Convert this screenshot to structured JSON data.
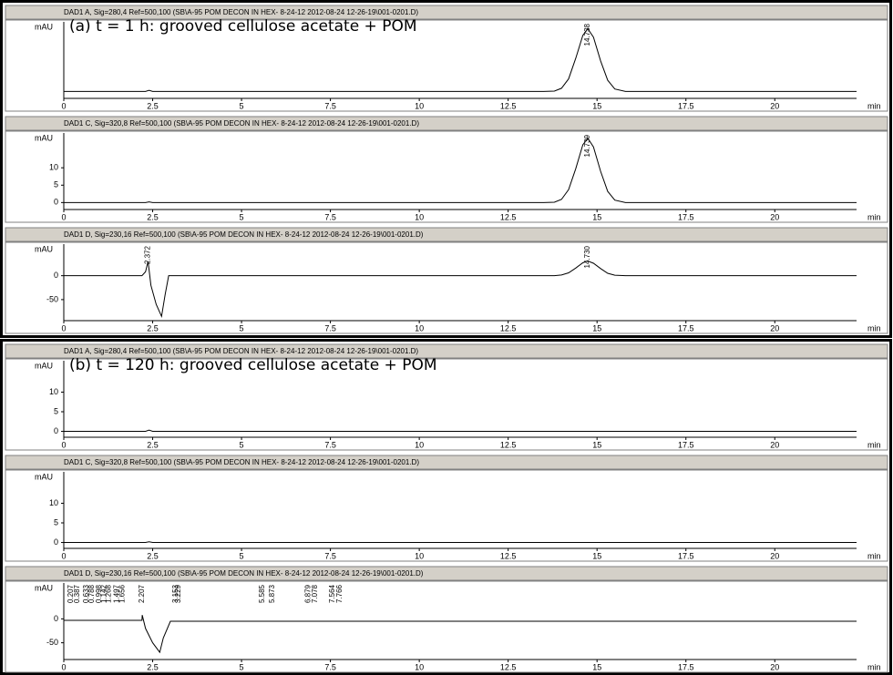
{
  "chart_data": [
    {
      "type": "line",
      "title": "DAD1 A, Sig=280,4 Ref=500,100 (SB\\A-95 POM DECON IN HEX- 8-24-12 2012-08-24 12-26-19\\001-0201.D)",
      "annotation": "(a) t = 1 h: grooved cellulose acetate + POM",
      "y_label": "mAU",
      "x_label": "min",
      "xlim": [
        0,
        22.3
      ],
      "xticks": [
        0,
        2.5,
        5,
        7.5,
        10,
        12.5,
        15,
        17.5,
        20
      ],
      "ylim": [
        -2,
        20
      ],
      "x": [
        0,
        2.3,
        2.4,
        2.5,
        13.5,
        13.8,
        14.0,
        14.2,
        14.4,
        14.6,
        14.74,
        14.9,
        15.1,
        15.3,
        15.5,
        15.8,
        22.3
      ],
      "series": [
        {
          "color": "#000000",
          "values": [
            0,
            0,
            0.3,
            0,
            0,
            0.1,
            0.9,
            3.6,
            9.5,
            16.1,
            18,
            15.6,
            8.8,
            3.2,
            0.7,
            0,
            0
          ]
        }
      ],
      "peaks": [
        14.738
      ]
    },
    {
      "type": "line",
      "title": "DAD1 C, Sig=320,8 Ref=500,100 (SB\\A-95 POM DECON IN HEX- 8-24-12 2012-08-24 12-26-19\\001-0201.D)",
      "y_label": "mAU",
      "x_label": "min",
      "xlim": [
        0,
        22.3
      ],
      "xticks": [
        0,
        2.5,
        5,
        7.5,
        10,
        12.5,
        15,
        17.5,
        20
      ],
      "ylim": [
        -2,
        20
      ],
      "yticks": [
        0,
        5,
        10
      ],
      "x": [
        0,
        2.3,
        2.4,
        2.5,
        13.5,
        13.8,
        14.0,
        14.2,
        14.4,
        14.6,
        14.74,
        14.9,
        15.1,
        15.3,
        15.5,
        15.8,
        22.3
      ],
      "series": [
        {
          "color": "#000000",
          "values": [
            0,
            0,
            0.2,
            0,
            0,
            0.1,
            0.9,
            3.7,
            9.7,
            16.6,
            18.5,
            16,
            9,
            3.2,
            0.7,
            0,
            0
          ]
        }
      ],
      "peaks": [
        14.739
      ]
    },
    {
      "type": "line",
      "title": "DAD1 D, Sig=230,16 Ref=500,100 (SB\\A-95 POM DECON IN HEX- 8-24-12 2012-08-24 12-26-19\\001-0201.D)",
      "y_label": "mAU",
      "x_label": "min",
      "xlim": [
        0,
        22.3
      ],
      "xticks": [
        0,
        2.5,
        5,
        7.5,
        10,
        12.5,
        15,
        17.5,
        20
      ],
      "ylim": [
        -94,
        66
      ],
      "yticks": [
        -50,
        0
      ],
      "x": [
        0,
        2.2,
        2.3,
        2.37,
        2.45,
        2.6,
        2.75,
        2.85,
        2.95,
        13.8,
        14.0,
        14.2,
        14.4,
        14.6,
        14.73,
        14.9,
        15.1,
        15.3,
        15.5,
        15.8,
        22.3
      ],
      "series": [
        {
          "color": "#000000",
          "values": [
            0,
            0,
            8,
            30,
            -20,
            -60,
            -85,
            -40,
            0,
            0,
            1.5,
            6,
            16,
            27,
            31,
            26,
            15,
            5,
            1,
            0,
            0
          ]
        }
      ],
      "peaks": [
        2.372,
        {
          "value": 14.73,
          "label": "14.730"
        }
      ]
    },
    {
      "type": "line",
      "title": "DAD1 A, Sig=280,4 Ref=500,100 (SB\\A-95 POM DECON IN HEX- 8-24-12 2012-08-24 12-26-19\\001-0201.D)",
      "annotation": "(b) t = 120 h: grooved cellulose acetate + POM",
      "y_label": "mAU",
      "x_label": "min",
      "xlim": [
        0,
        22.3
      ],
      "xticks": [
        0,
        2.5,
        5,
        7.5,
        10,
        12.5,
        15,
        17.5,
        20
      ],
      "ylim": [
        -1.5,
        18
      ],
      "yticks": [
        0,
        5,
        10
      ],
      "x": [
        0,
        2.3,
        2.4,
        2.5,
        22.3
      ],
      "series": [
        {
          "color": "#000000",
          "values": [
            0,
            0,
            0.3,
            0,
            0
          ]
        }
      ]
    },
    {
      "type": "line",
      "title": "DAD1 C, Sig=320,8 Ref=500,100 (SB\\A-95 POM DECON IN HEX- 8-24-12 2012-08-24 12-26-19\\001-0201.D)",
      "y_label": "mAU",
      "x_label": "min",
      "xlim": [
        0,
        22.3
      ],
      "xticks": [
        0,
        2.5,
        5,
        7.5,
        10,
        12.5,
        15,
        17.5,
        20
      ],
      "ylim": [
        -1.5,
        18
      ],
      "yticks": [
        0,
        5,
        10
      ],
      "x": [
        0,
        2.3,
        2.4,
        2.5,
        22.3
      ],
      "series": [
        {
          "color": "#000000",
          "values": [
            0,
            0,
            0.2,
            0,
            0
          ]
        }
      ]
    },
    {
      "type": "line",
      "title": "DAD1 D, Sig=230,16 Ref=500,100 (SB\\A-95 POM DECON IN HEX- 8-24-12 2012-08-24 12-26-19\\001-0201.D)",
      "y_label": "mAU",
      "x_label": "min",
      "xlim": [
        0,
        22.3
      ],
      "xticks": [
        0,
        2.5,
        5,
        7.5,
        10,
        12.5,
        15,
        17.5,
        20
      ],
      "ylim": [
        -85,
        75
      ],
      "yticks": [
        -50,
        0
      ],
      "x": [
        0,
        0.2,
        1.8,
        2.1,
        2.2,
        2.207,
        2.3,
        2.5,
        2.7,
        2.8,
        3.0,
        3.2,
        22.3
      ],
      "series": [
        {
          "color": "#000000",
          "values": [
            -3,
            -3,
            -3,
            -3,
            -3,
            8,
            -20,
            -50,
            -70,
            -40,
            -5,
            -5,
            -5
          ]
        }
      ],
      "peaks": [
        0.207,
        0.387,
        0.633,
        0.788,
        0.998,
        1.142,
        1.268,
        1.497,
        1.656,
        2.207,
        3.153,
        3.229,
        5.585,
        5.873,
        6.879,
        7.078,
        7.564,
        7.766
      ]
    }
  ]
}
